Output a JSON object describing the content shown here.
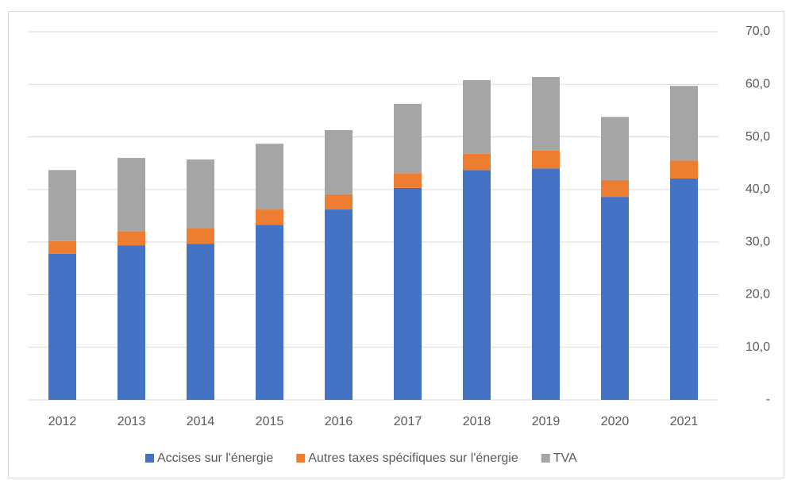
{
  "chart_data": {
    "type": "stacked_bar",
    "categories": [
      "2012",
      "2013",
      "2014",
      "2015",
      "2016",
      "2017",
      "2018",
      "2019",
      "2020",
      "2021"
    ],
    "series": [
      {
        "name": "Accises sur l'énergie",
        "color": "#4472c4",
        "values": [
          27.8,
          29.4,
          29.7,
          33.3,
          36.2,
          40.3,
          43.7,
          44.0,
          38.6,
          42.1
        ]
      },
      {
        "name": "Autres taxes spécifiques sur l'énergie",
        "color": "#ed7d31",
        "values": [
          2.4,
          2.7,
          3.0,
          2.9,
          2.9,
          2.8,
          3.1,
          3.4,
          3.2,
          3.4
        ]
      },
      {
        "name": "TVA",
        "color": "#a5a5a5",
        "values": [
          13.5,
          13.9,
          13.0,
          12.5,
          12.2,
          13.2,
          14.0,
          14.0,
          12.0,
          14.2
        ]
      }
    ],
    "ylim": [
      0,
      70
    ],
    "yticks": [
      {
        "value": 0,
        "label": "-"
      },
      {
        "value": 10,
        "label": "10,0"
      },
      {
        "value": 20,
        "label": "20,0"
      },
      {
        "value": 30,
        "label": "30,0"
      },
      {
        "value": 40,
        "label": "40,0"
      },
      {
        "value": 50,
        "label": "50,0"
      },
      {
        "value": 60,
        "label": "60,0"
      },
      {
        "value": 70,
        "label": "70,0"
      }
    ],
    "grid": true,
    "legend": "bottom"
  }
}
